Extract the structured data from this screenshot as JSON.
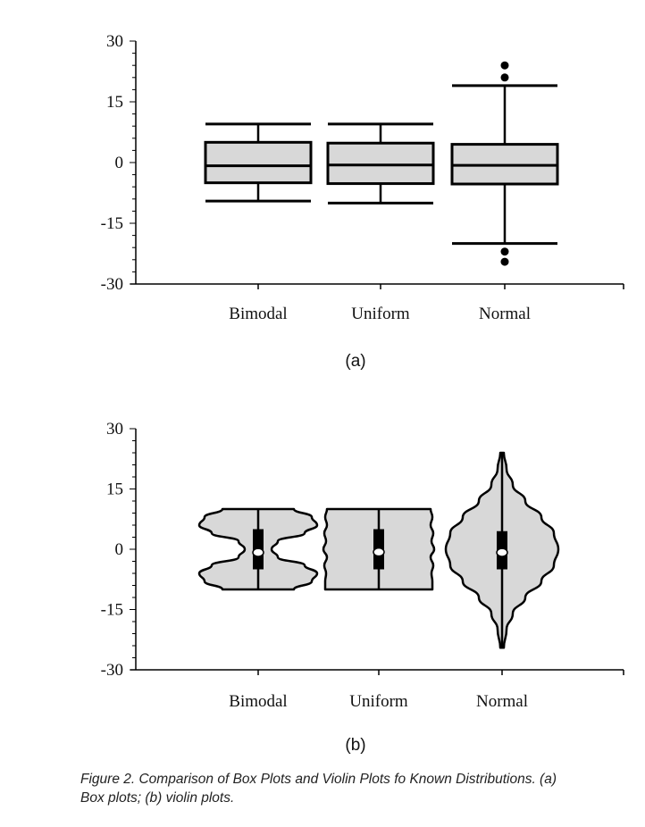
{
  "caption": "Figure 2.  Comparison of Box Plots and Violin Plots fo Known Distributions. (a) Box plots; (b) violin plots.",
  "chart_data": [
    {
      "type": "box",
      "panel_label": "(a)",
      "categories": [
        "Bimodal",
        "Uniform",
        "Normal"
      ],
      "ylim": [
        -30,
        30
      ],
      "yticks": [
        "30",
        "15",
        "0",
        "-15",
        "-30"
      ],
      "boxes": [
        {
          "name": "Bimodal",
          "whisker_low": -9.5,
          "q1": -5,
          "median": -0.8,
          "q3": 5,
          "whisker_high": 9.5,
          "outliers": []
        },
        {
          "name": "Uniform",
          "whisker_low": -10,
          "q1": -5.2,
          "median": -0.6,
          "q3": 4.8,
          "whisker_high": 9.5,
          "outliers": []
        },
        {
          "name": "Normal",
          "whisker_low": -20,
          "q1": -5.3,
          "median": -0.7,
          "q3": 4.5,
          "whisker_high": 19,
          "outliers": [
            24,
            21,
            -22,
            -24.5
          ]
        }
      ]
    },
    {
      "type": "violin",
      "panel_label": "(b)",
      "categories": [
        "Bimodal",
        "Uniform",
        "Normal"
      ],
      "ylim": [
        -30,
        30
      ],
      "yticks": [
        "30",
        "15",
        "0",
        "-15",
        "-30"
      ],
      "violins": [
        {
          "name": "Bimodal",
          "min": -10,
          "q1": -5,
          "median": -0.8,
          "q3": 5,
          "max": 10,
          "density": [
            [
              -10,
              40
            ],
            [
              -8,
              60
            ],
            [
              -6,
              66
            ],
            [
              -4,
              52
            ],
            [
              -2,
              22
            ],
            [
              0,
              15
            ],
            [
              2,
              22
            ],
            [
              4,
              52
            ],
            [
              6,
              66
            ],
            [
              8,
              60
            ],
            [
              10,
              40
            ]
          ]
        },
        {
          "name": "Uniform",
          "min": -10,
          "q1": -5,
          "median": -0.7,
          "q3": 5,
          "max": 10,
          "density": [
            [
              -10,
              60
            ],
            [
              -8,
              60
            ],
            [
              -6,
              59
            ],
            [
              -4,
              61
            ],
            [
              -2,
              58
            ],
            [
              0,
              62
            ],
            [
              2,
              59
            ],
            [
              4,
              61
            ],
            [
              6,
              58
            ],
            [
              8,
              60
            ],
            [
              10,
              58
            ]
          ]
        },
        {
          "name": "Normal",
          "min": -24.5,
          "q1": -5,
          "median": -0.8,
          "q3": 4.5,
          "max": 24,
          "density": [
            [
              -24.5,
              2
            ],
            [
              -20,
              5
            ],
            [
              -16,
              12
            ],
            [
              -12,
              26
            ],
            [
              -8,
              44
            ],
            [
              -4,
              58
            ],
            [
              0,
              63
            ],
            [
              4,
              58
            ],
            [
              8,
              44
            ],
            [
              12,
              26
            ],
            [
              16,
              12
            ],
            [
              20,
              5
            ],
            [
              24,
              2
            ]
          ]
        }
      ]
    }
  ]
}
